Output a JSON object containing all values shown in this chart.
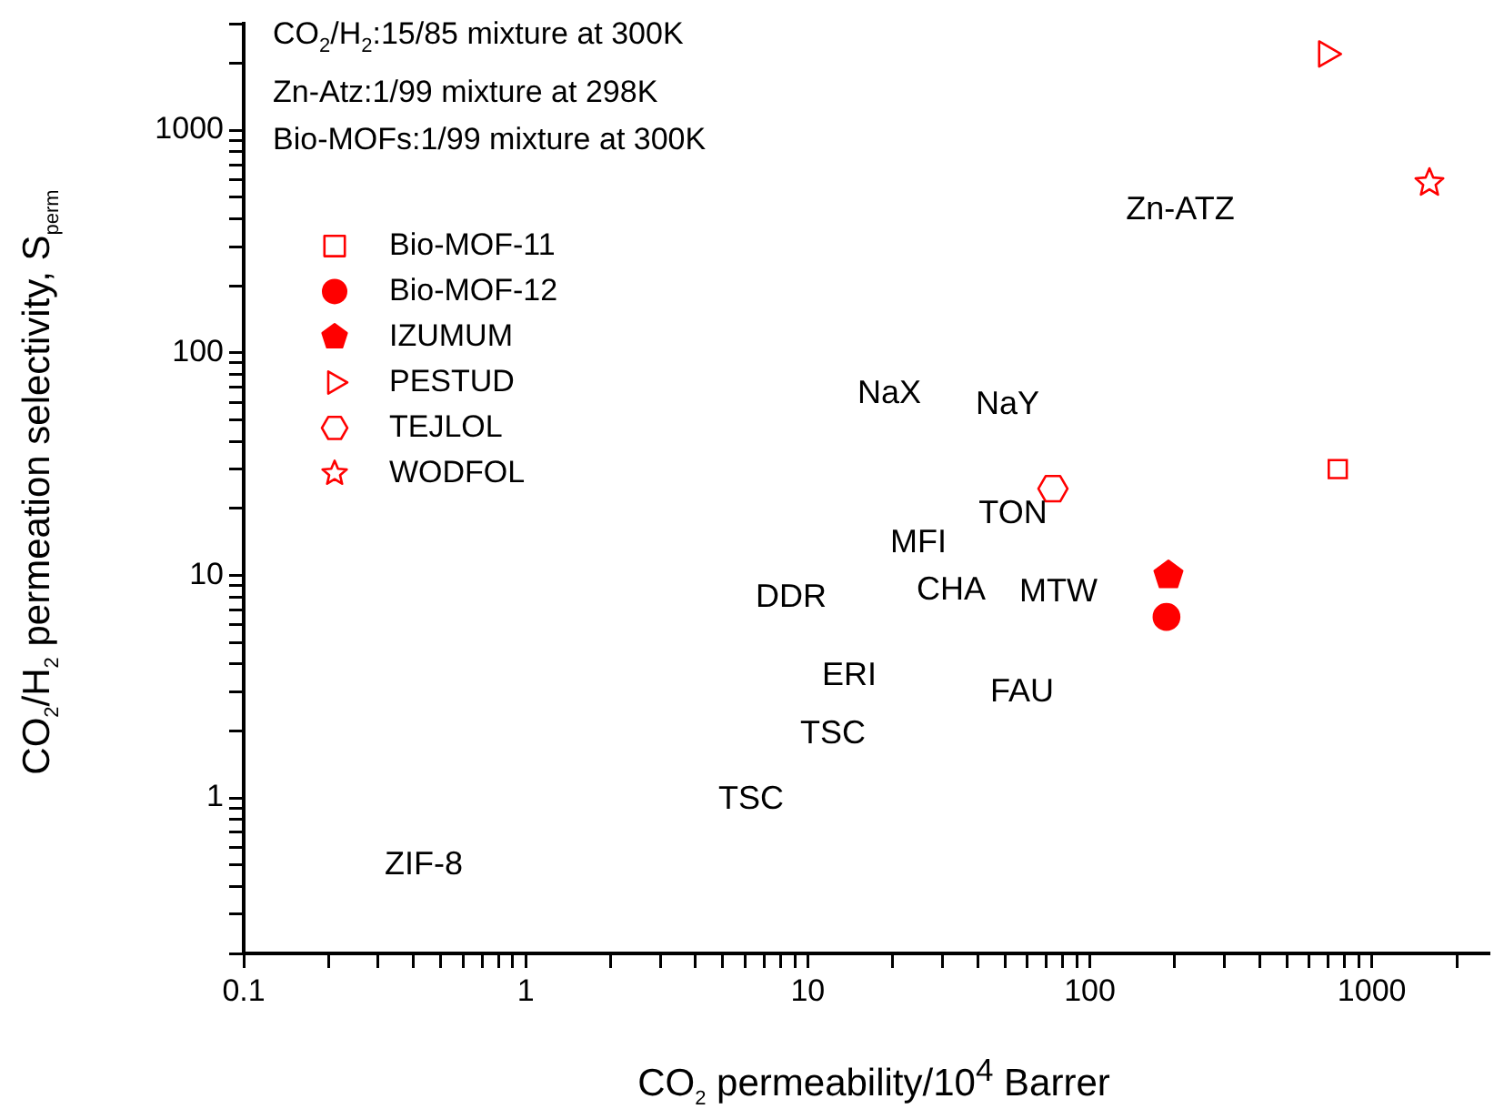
{
  "chart_data": {
    "type": "scatter",
    "xlabel": "CO$_{2}$ permeability/10$^{4}$ Barrer",
    "ylabel": "CO$_{2}$/H$_{2}$ permeation selectivity, S$_{perm}$",
    "log": "xy",
    "grid": false,
    "legend": "top left",
    "xlim": [
      0.1,
      2600
    ],
    "ylim": [
      0.2,
      3000
    ],
    "xticks": [
      0.1,
      {
        "value": 0.2,
        "label": null
      },
      {
        "value": 0.3,
        "label": null
      },
      {
        "value": 0.4,
        "label": null
      },
      {
        "value": 0.5,
        "label": null
      },
      {
        "value": 0.6,
        "label": null
      },
      {
        "value": 0.7,
        "label": null
      },
      {
        "value": 0.8,
        "label": null
      },
      {
        "value": 0.9,
        "label": null
      },
      1,
      {
        "value": 2,
        "label": null
      },
      {
        "value": 3,
        "label": null
      },
      {
        "value": 4,
        "label": null
      },
      {
        "value": 5,
        "label": null
      },
      {
        "value": 6,
        "label": null
      },
      {
        "value": 7,
        "label": null
      },
      {
        "value": 8,
        "label": null
      },
      {
        "value": 9,
        "label": null
      },
      10,
      {
        "value": 20,
        "label": null
      },
      {
        "value": 30,
        "label": null
      },
      {
        "value": 40,
        "label": null
      },
      {
        "value": 50,
        "label": null
      },
      {
        "value": 60,
        "label": null
      },
      {
        "value": 70,
        "label": null
      },
      {
        "value": 80,
        "label": null
      },
      {
        "value": 90,
        "label": null
      },
      100,
      {
        "value": 200,
        "label": null
      },
      {
        "value": 300,
        "label": null
      },
      {
        "value": 400,
        "label": null
      },
      {
        "value": 500,
        "label": null
      },
      {
        "value": 600,
        "label": null
      },
      {
        "value": 700,
        "label": null
      },
      {
        "value": 800,
        "label": null
      },
      {
        "value": 900,
        "label": null
      },
      1000,
      {
        "value": 2000,
        "label": null
      }
    ],
    "yticks": [
      {
        "value": 0.2,
        "label": null
      },
      {
        "value": 0.3,
        "label": null
      },
      {
        "value": 0.4,
        "label": null
      },
      {
        "value": 0.5,
        "label": null
      },
      {
        "value": 0.6,
        "label": null
      },
      {
        "value": 0.7,
        "label": null
      },
      {
        "value": 0.8,
        "label": null
      },
      {
        "value": 0.9,
        "label": null
      },
      1,
      {
        "value": 2,
        "label": null
      },
      {
        "value": 3,
        "label": null
      },
      {
        "value": 4,
        "label": null
      },
      {
        "value": 5,
        "label": null
      },
      {
        "value": 6,
        "label": null
      },
      {
        "value": 7,
        "label": null
      },
      {
        "value": 8,
        "label": null
      },
      {
        "value": 9,
        "label": null
      },
      10,
      {
        "value": 20,
        "label": null
      },
      {
        "value": 30,
        "label": null
      },
      {
        "value": 40,
        "label": null
      },
      {
        "value": 50,
        "label": null
      },
      {
        "value": 60,
        "label": null
      },
      {
        "value": 70,
        "label": null
      },
      {
        "value": 80,
        "label": null
      },
      {
        "value": 90,
        "label": null
      },
      100,
      {
        "value": 200,
        "label": null
      },
      {
        "value": 300,
        "label": null
      },
      {
        "value": 400,
        "label": null
      },
      {
        "value": 500,
        "label": null
      },
      {
        "value": 600,
        "label": null
      },
      {
        "value": 700,
        "label": null
      },
      {
        "value": 800,
        "label": null
      },
      {
        "value": 900,
        "label": null
      },
      1000,
      {
        "value": 2000,
        "label": null
      },
      {
        "value": 3000,
        "label": null
      }
    ],
    "series": [
      {
        "name": "Bio-MOF-11",
        "color": "#ff0000",
        "marker": "square",
        "x": [
          757
        ],
        "values": [
          30
        ]
      },
      {
        "name": "Bio-MOF-12",
        "color": "#ff0000",
        "marker": "circle",
        "x": [
          187
        ],
        "values": [
          6.5
        ]
      },
      {
        "name": "IZUMUM",
        "color": "#ff0000",
        "x": [
          190
        ],
        "values": [
          10
        ]
      },
      {
        "name": "PESTUD",
        "color": "#ff0000",
        "marker": "triangle-right",
        "x": [
          690
        ],
        "values": [
          2200
        ]
      },
      {
        "name": "TEJLOL",
        "color": "#ff0000",
        "x": [
          74
        ],
        "values": [
          24.5
        ]
      },
      {
        "name": "WODFOL",
        "color": "#ff0000",
        "marker": "star",
        "x": [
          1600
        ],
        "values": [
          580
        ]
      }
    ],
    "annotations": [
      "CO$_{2}$/H$_{2}$:15/85 mixture at 300K",
      "Zn-Atz:1/99 mixture at 298K",
      "Bio-MOFs:1/99 mixture at 300K",
      "Zn-ATZ",
      "NaX",
      "NaY",
      "TON",
      "MFI",
      "DDR",
      "CHA",
      "MTW",
      "ERI",
      "FAU",
      "TSC",
      "TSC",
      "ZIF-8"
    ]
  }
}
